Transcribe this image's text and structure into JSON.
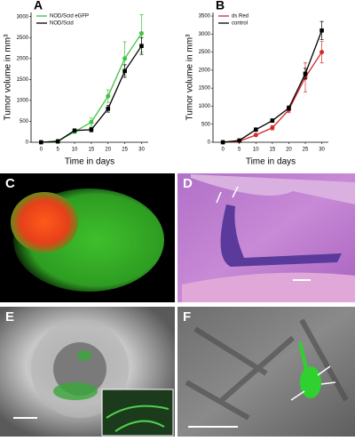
{
  "chart_data": [
    {
      "type": "line",
      "panel": "A",
      "x": [
        0,
        5,
        10,
        15,
        20,
        25,
        30
      ],
      "xlim": [
        -3,
        32
      ],
      "xticks": [
        0,
        5,
        10,
        15,
        20,
        25,
        30
      ],
      "ylim": [
        0,
        3100
      ],
      "yticks": [
        0,
        500,
        1000,
        1500,
        2000,
        2500,
        3000
      ],
      "x_label": "Time in days",
      "y_label": "Tumor volume in mm³",
      "legend": "upper left",
      "series": [
        {
          "name": "NOD/Scid eGFP",
          "color": "#3fc43f",
          "marker": "circle",
          "values": [
            0,
            30,
            250,
            480,
            1100,
            2000,
            2600
          ],
          "errors": [
            0,
            10,
            40,
            100,
            150,
            400,
            450
          ]
        },
        {
          "name": "NOD/Scid",
          "color": "#000000",
          "marker": "square",
          "values": [
            0,
            20,
            280,
            300,
            800,
            1700,
            2300
          ],
          "errors": [
            0,
            10,
            30,
            50,
            80,
            150,
            200
          ]
        }
      ]
    },
    {
      "type": "line",
      "panel": "B",
      "x": [
        0,
        5,
        10,
        15,
        20,
        25,
        30
      ],
      "xlim": [
        -3,
        32
      ],
      "xticks": [
        0,
        5,
        10,
        15,
        20,
        25,
        30
      ],
      "ylim": [
        0,
        3600
      ],
      "yticks": [
        0,
        500,
        1000,
        1500,
        2000,
        2500,
        3000,
        3500
      ],
      "x_label": "Time in days",
      "y_label": "Tumor volume in mm³",
      "legend": "upper left",
      "series": [
        {
          "name": "ds Red",
          "color": "#d42a2a",
          "marker": "circle",
          "values": [
            0,
            30,
            200,
            400,
            900,
            1800,
            2500
          ],
          "errors": [
            0,
            10,
            30,
            60,
            80,
            400,
            300
          ]
        },
        {
          "name": "control",
          "color": "#000000",
          "marker": "square",
          "values": [
            0,
            50,
            350,
            600,
            950,
            1900,
            3100
          ],
          "errors": [
            0,
            10,
            50,
            50,
            60,
            150,
            250
          ]
        }
      ]
    }
  ],
  "panels": [
    "C",
    "D",
    "E",
    "F"
  ]
}
